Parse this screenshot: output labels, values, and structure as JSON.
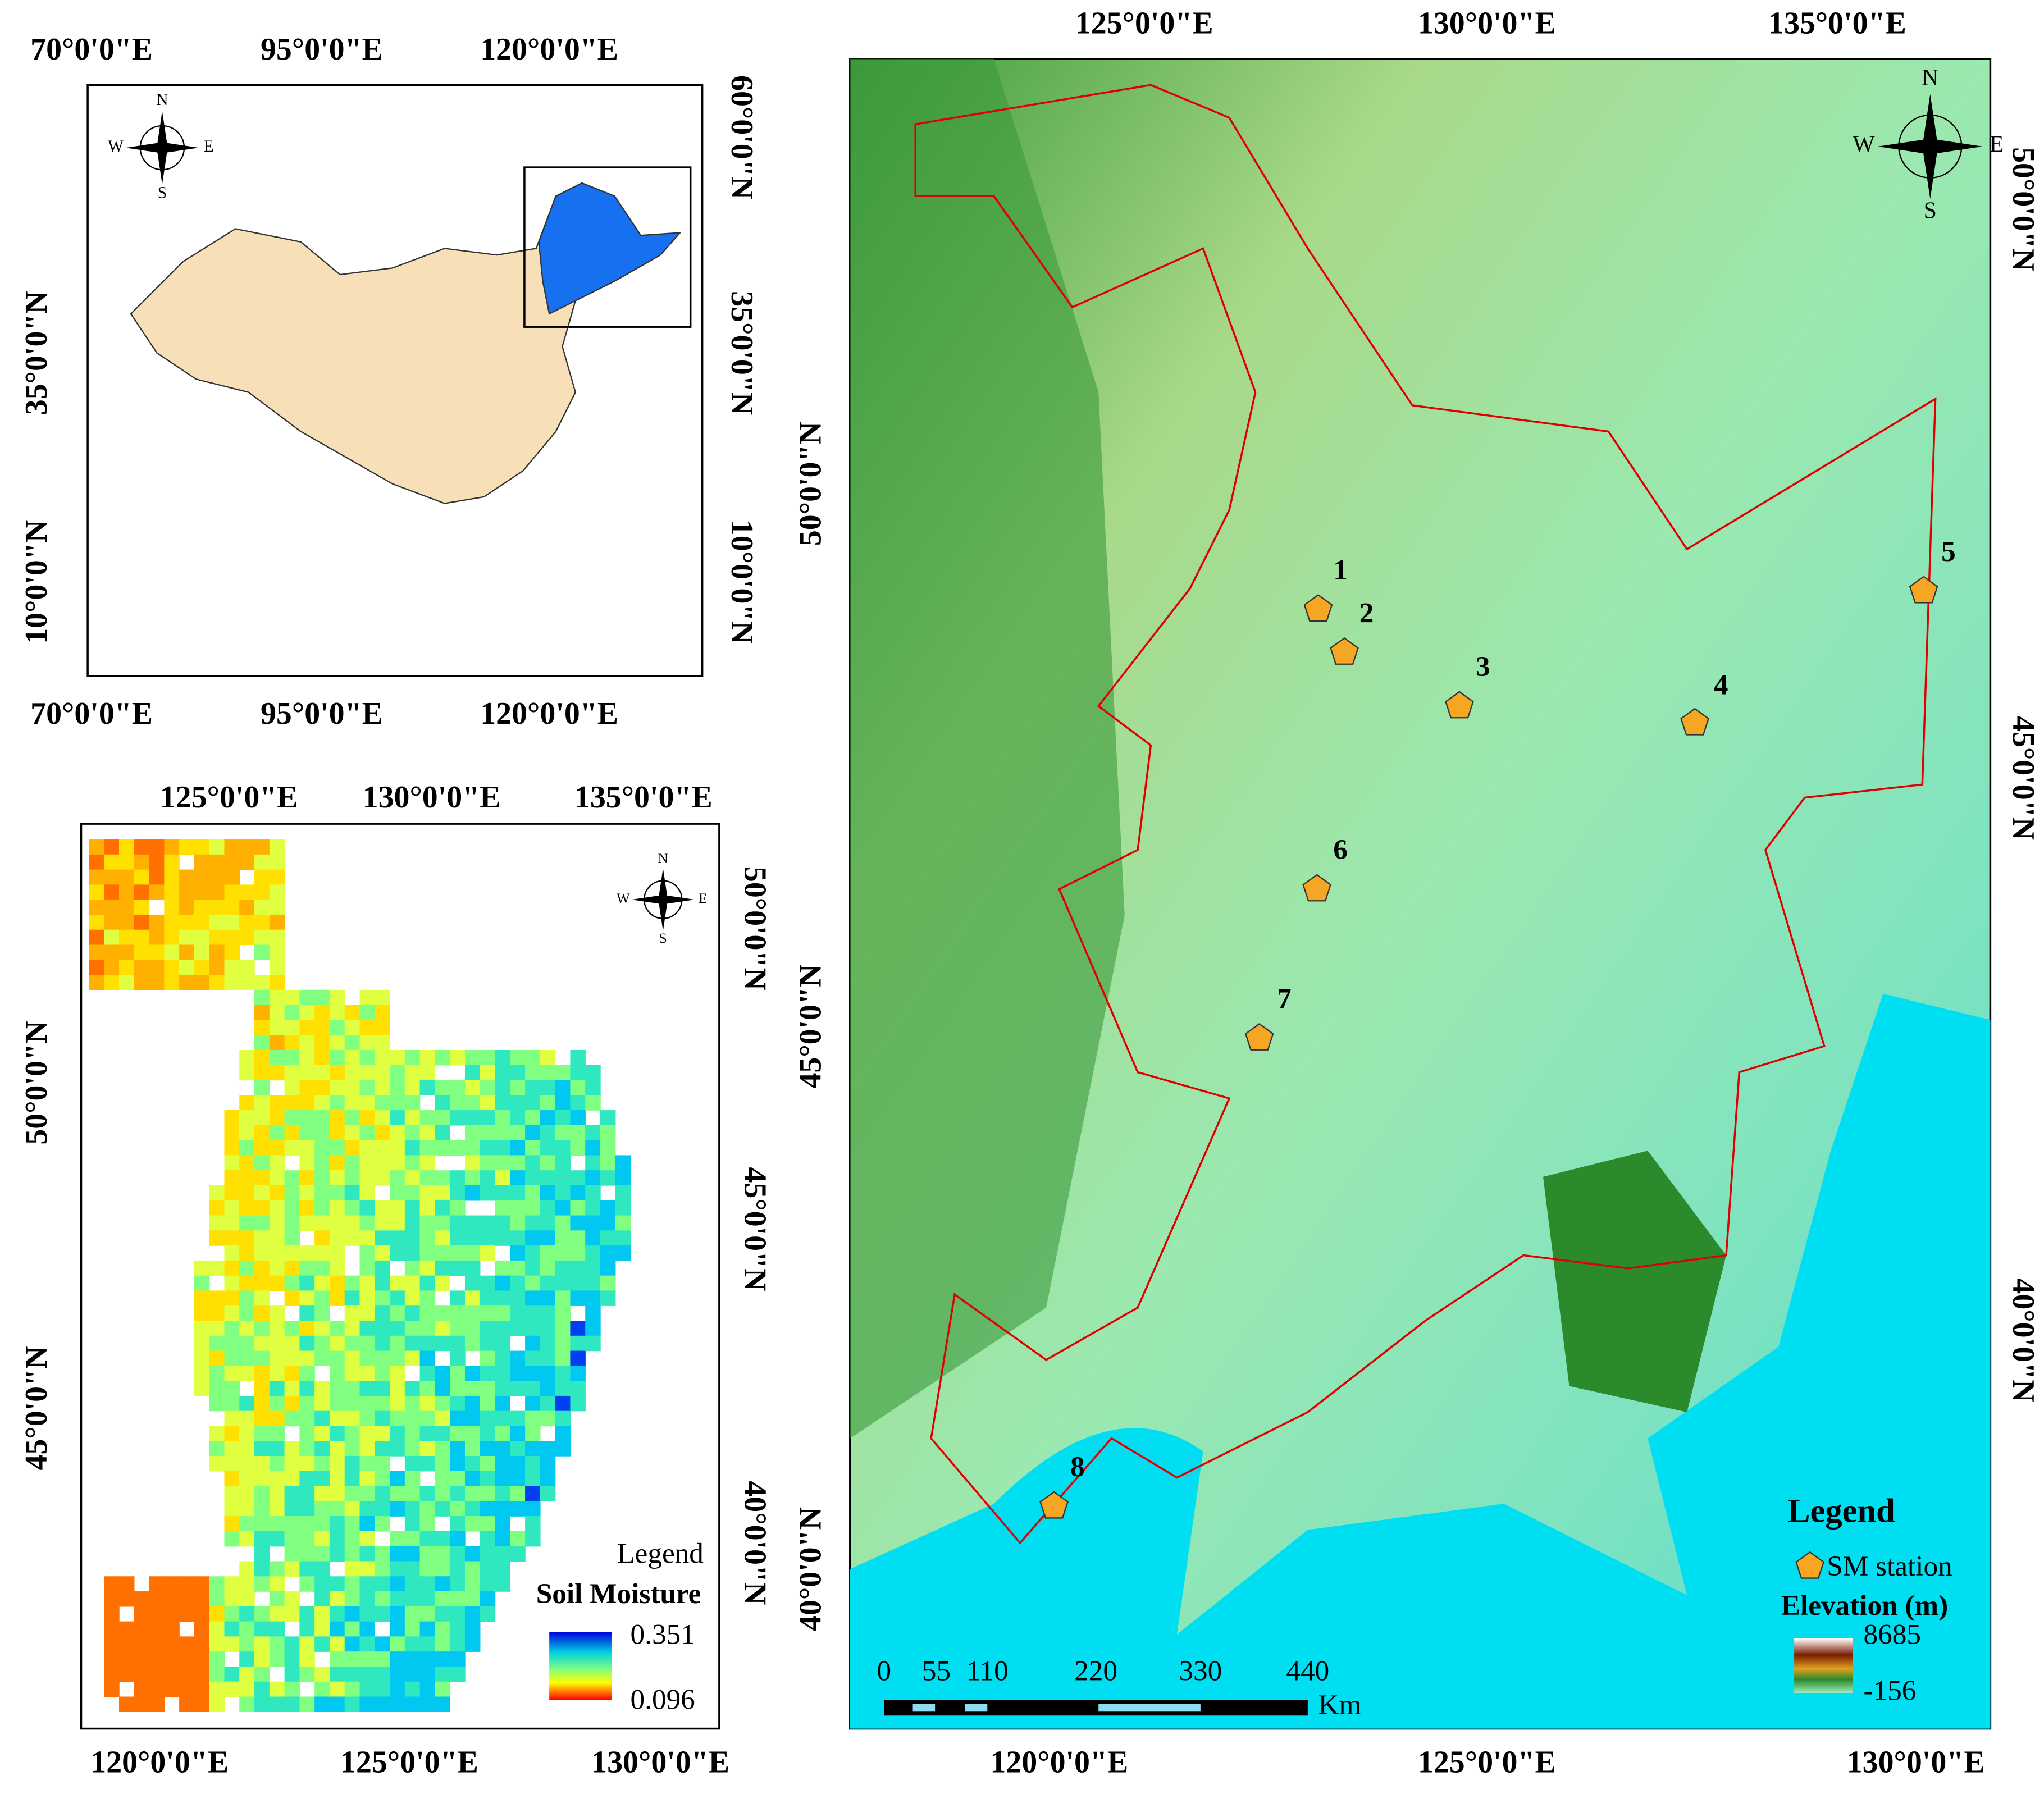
{
  "panel_a": {
    "top_ticks": [
      "70°0'0\"E",
      "95°0'0\"E",
      "120°0'0\"E"
    ],
    "bottom_ticks": [
      "70°0'0\"E",
      "95°0'0\"E",
      "120°0'0\"E"
    ],
    "left_ticks": [
      "35°0'0\"N",
      "10°0'0\"N"
    ],
    "right_ticks": [
      "60°0'0\"N",
      "35°0'0\"N",
      "10°0'0\"N"
    ],
    "compass": [
      "N",
      "S",
      "E",
      "W"
    ]
  },
  "panel_b": {
    "top_ticks": [
      "125°0'0\"E",
      "130°0'0\"E",
      "135°0'0\"E"
    ],
    "bottom_ticks": [
      "120°0'0\"E",
      "125°0'0\"E",
      "130°0'0\"E"
    ],
    "left_ticks": [
      "50°0'0\"N",
      "45°0'0\"N"
    ],
    "right_ticks": [
      "50°0'0\"N",
      "45°0'0\"N",
      "40°0'0\"N"
    ],
    "compass": [
      "N",
      "S",
      "E",
      "W"
    ],
    "legend": {
      "title": "Legend",
      "subtitle": "Soil Moisture",
      "max": "0.351",
      "min": "0.096"
    }
  },
  "panel_c": {
    "top_ticks": [
      "125°0'0\"E",
      "130°0'0\"E",
      "135°0'0\"E"
    ],
    "bottom_ticks": [
      "120°0'0\"E",
      "125°0'0\"E",
      "130°0'0\"E"
    ],
    "left_ticks": [
      "50°0'0\"N",
      "45°0'0\"N",
      "40°0'0\"N"
    ],
    "right_ticks": [
      "50°0'0\"N",
      "45°0'0\"N",
      "40°0'0\"N"
    ],
    "compass": [
      "N",
      "S",
      "E",
      "W"
    ],
    "stations": [
      "1",
      "2",
      "3",
      "4",
      "5",
      "6",
      "7",
      "8"
    ],
    "legend": {
      "title": "Legend",
      "station": "SM station",
      "elevation": "Elevation (m)",
      "max": "8685",
      "min": "-156"
    },
    "scale_bar": {
      "labels": [
        "0",
        "55",
        "110",
        "220",
        "330",
        "440"
      ],
      "unit": "Km"
    }
  }
}
